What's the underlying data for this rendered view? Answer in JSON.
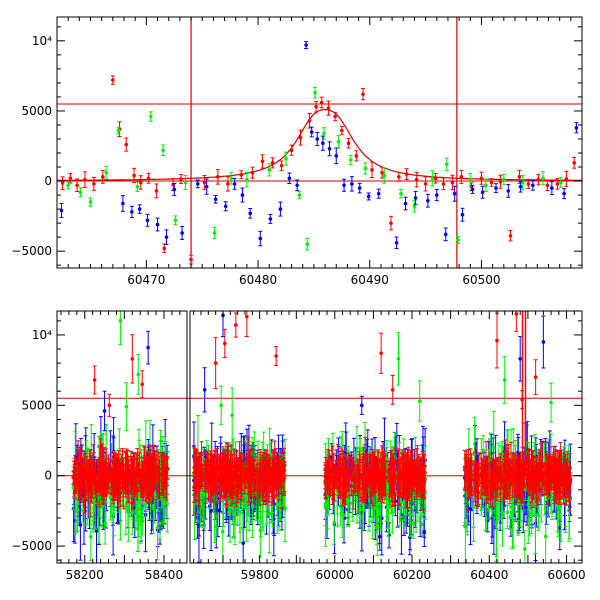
{
  "colors": {
    "red": "#ff0000",
    "green": "#00ee00",
    "blue": "#0000ff",
    "model": "#cc0000",
    "ref": "#cc0000",
    "axis": "#000000"
  },
  "chart_data": [
    {
      "type": "scatter",
      "panel": "top",
      "xlim": [
        60462,
        60509
      ],
      "ylim": [
        -6200,
        11700
      ],
      "xticks": [
        60470,
        60480,
        60490,
        60500
      ],
      "yticks": [
        -5000,
        0,
        5000,
        10000
      ],
      "ytick_labels": [
        "−5000",
        "0",
        "5000",
        "10⁴"
      ],
      "reference_lines_y": [
        0,
        5500
      ],
      "reference_lines_x": [
        60474,
        60497.8
      ],
      "model_curve": {
        "t0": 60486,
        "peak": 5100,
        "tE": 2.3
      },
      "series": [
        {
          "color": "red",
          "points": [
            [
              60462.5,
              -150
            ],
            [
              60463.2,
              200
            ],
            [
              60463.8,
              -300
            ],
            [
              60464.5,
              100
            ],
            [
              60465.3,
              -200
            ],
            [
              60466.1,
              300
            ],
            [
              60467,
              7200
            ],
            [
              60467.6,
              3700
            ],
            [
              60468.2,
              2600
            ],
            [
              60468.9,
              400
            ],
            [
              60469.5,
              -100
            ],
            [
              60470.2,
              200
            ],
            [
              60470.9,
              -700
            ],
            [
              60471.6,
              -4800
            ],
            [
              60472.4,
              -250
            ],
            [
              60473.1,
              150
            ],
            [
              60474,
              -5600
            ],
            [
              60475.2,
              -100
            ],
            [
              60476.4,
              300
            ],
            [
              60477.3,
              -200
            ],
            [
              60478.5,
              450
            ],
            [
              60479.5,
              600
            ],
            [
              60480.4,
              1400
            ],
            [
              60481.3,
              1300
            ],
            [
              60482.1,
              1100
            ],
            [
              60483,
              2200
            ],
            [
              60483.8,
              3100
            ],
            [
              60484.6,
              4300
            ],
            [
              60485.2,
              5300
            ],
            [
              60485.7,
              5600
            ],
            [
              60486.3,
              5200
            ],
            [
              60486.9,
              4600
            ],
            [
              60487.5,
              3600
            ],
            [
              60488.1,
              2700
            ],
            [
              60488.8,
              1800
            ],
            [
              60489.4,
              6200
            ],
            [
              60490.2,
              800
            ],
            [
              60491.1,
              600
            ],
            [
              60491.9,
              -3000
            ],
            [
              60492.6,
              300
            ],
            [
              60493.3,
              500
            ],
            [
              60494.2,
              100
            ],
            [
              60495,
              -200
            ],
            [
              60495.9,
              200
            ],
            [
              60496.6,
              -200
            ],
            [
              60497.4,
              -100
            ],
            [
              60498.2,
              300
            ],
            [
              60499.1,
              -400
            ],
            [
              60500,
              200
            ],
            [
              60500.9,
              -100
            ],
            [
              60501.7,
              -50
            ],
            [
              60502.6,
              -3900
            ],
            [
              60503.4,
              300
            ],
            [
              60504.2,
              -200
            ],
            [
              60505.1,
              100
            ],
            [
              60505.9,
              -300
            ],
            [
              60506.8,
              -200
            ],
            [
              60507.6,
              150
            ],
            [
              60508.3,
              1300
            ]
          ]
        },
        {
          "color": "green",
          "points": [
            [
              60463,
              -300
            ],
            [
              60464.1,
              -800
            ],
            [
              60465,
              -1500
            ],
            [
              60466.4,
              600
            ],
            [
              60467.5,
              3600
            ],
            [
              60469.2,
              -400
            ],
            [
              60470.4,
              4600
            ],
            [
              60471.5,
              2200
            ],
            [
              60472.6,
              -2800
            ],
            [
              60473.5,
              -100
            ],
            [
              60476.1,
              -3700
            ],
            [
              60477.6,
              200
            ],
            [
              60479,
              100
            ],
            [
              60481,
              800
            ],
            [
              60482.5,
              1600
            ],
            [
              60483.7,
              -1000
            ],
            [
              60484.4,
              -4500
            ],
            [
              60485.1,
              6300
            ],
            [
              60485.9,
              3400
            ],
            [
              60487.2,
              2800
            ],
            [
              60488.3,
              1500
            ],
            [
              60489.6,
              900
            ],
            [
              60491.3,
              400
            ],
            [
              60492.8,
              -900
            ],
            [
              60494,
              -1800
            ],
            [
              60495.6,
              200
            ],
            [
              60496.9,
              1200
            ],
            [
              60497.9,
              -4200
            ],
            [
              60499,
              100
            ],
            [
              60500.4,
              -300
            ],
            [
              60502,
              100
            ],
            [
              60503.7,
              -100
            ],
            [
              60505.5,
              200
            ],
            [
              60507.1,
              -100
            ]
          ]
        },
        {
          "color": "blue",
          "points": [
            [
              60462.4,
              -2100
            ],
            [
              60467.9,
              -1600
            ],
            [
              60468.7,
              -2200
            ],
            [
              60469.4,
              -2000
            ],
            [
              60470.1,
              -2800
            ],
            [
              60471,
              -3100
            ],
            [
              60471.8,
              -4000
            ],
            [
              60472.5,
              -600
            ],
            [
              60473.2,
              -3700
            ],
            [
              60474.6,
              -200
            ],
            [
              60475.4,
              -400
            ],
            [
              60476.2,
              -1300
            ],
            [
              60477.1,
              -1800
            ],
            [
              60477.9,
              -200
            ],
            [
              60478.6,
              -1000
            ],
            [
              60479.3,
              -2300
            ],
            [
              60480.2,
              -4100
            ],
            [
              60481.1,
              -2700
            ],
            [
              60482,
              -2000
            ],
            [
              60482.8,
              200
            ],
            [
              60483.5,
              -300
            ],
            [
              60484.3,
              9700
            ],
            [
              60484.8,
              3500
            ],
            [
              60485.3,
              3000
            ],
            [
              60485.8,
              2700
            ],
            [
              60486.4,
              2300
            ],
            [
              60487,
              1800
            ],
            [
              60487.7,
              -300
            ],
            [
              60488.4,
              -200
            ],
            [
              60489.1,
              -500
            ],
            [
              60489.9,
              -1100
            ],
            [
              60490.8,
              -900
            ],
            [
              60492.4,
              -4400
            ],
            [
              60493.2,
              -1600
            ],
            [
              60494.1,
              -1200
            ],
            [
              60495.2,
              -1400
            ],
            [
              60496,
              -1000
            ],
            [
              60496.8,
              -3800
            ],
            [
              60497.6,
              -900
            ],
            [
              60498.3,
              -2400
            ],
            [
              60499.2,
              -600
            ],
            [
              60500.1,
              -800
            ],
            [
              60501.3,
              -500
            ],
            [
              60502.4,
              -700
            ],
            [
              60503.5,
              -400
            ],
            [
              60504.6,
              -300
            ],
            [
              60506.3,
              -500
            ],
            [
              60507.4,
              -900
            ],
            [
              60508.5,
              3800
            ]
          ]
        }
      ]
    },
    {
      "type": "scatter",
      "panel": "bottom",
      "ylim": [
        -6200,
        11700
      ],
      "yticks": [
        -5000,
        0,
        5000,
        10000
      ],
      "ytick_labels": [
        "−5000",
        "0",
        "5000",
        "10⁴"
      ],
      "reference_lines_y": [
        0,
        5500
      ],
      "segments": [
        {
          "xlim": [
            58130,
            58458
          ],
          "xticks": [
            58200,
            58300,
            58400
          ],
          "xtick_labels": [
            "58200",
            "58400"
          ],
          "label_ticks": [
            58200,
            58400
          ]
        },
        {
          "xlim": [
            59610,
            59910
          ],
          "xticks": [
            59700,
            59800
          ],
          "label_ticks": [
            59800
          ]
        },
        {
          "xlim": [
            59910,
            60640
          ],
          "xticks": [
            60000,
            60100,
            60200,
            60300,
            60400,
            60500,
            60600
          ],
          "label_ticks": [
            60000,
            60200,
            60400,
            60600
          ]
        }
      ],
      "xtick_labels": [
        "58200",
        "58400",
        "59800",
        "60000",
        "60200",
        "60400",
        "60600"
      ],
      "seasons": [
        {
          "segment": 0,
          "x_range": [
            58170,
            58410
          ]
        },
        {
          "segment": 1,
          "x_range": [
            59620,
            59870
          ]
        },
        {
          "segment": 2,
          "x_range": [
            59975,
            60235
          ]
        },
        {
          "segment": 2,
          "x_range": [
            60335,
            60610
          ]
        }
      ],
      "event_x": 60486,
      "outliers": [
        {
          "color": "red",
          "points": [
            [
              58225,
              6800
            ],
            [
              58262,
              5000
            ],
            [
              58320,
              8300
            ],
            [
              58345,
              6500
            ],
            [
              59680,
              8000
            ],
            [
              59705,
              9400
            ],
            [
              59735,
              10700
            ],
            [
              59765,
              11300
            ],
            [
              59845,
              8500
            ],
            [
              60120,
              8700
            ],
            [
              60150,
              6100
            ],
            [
              60420,
              9600
            ],
            [
              60470,
              11500
            ],
            [
              60485,
              5400
            ],
            [
              60520,
              7000
            ]
          ]
        },
        {
          "color": "green",
          "points": [
            [
              58290,
              11000
            ],
            [
              58305,
              4900
            ],
            [
              58335,
              7200
            ],
            [
              59695,
              5000
            ],
            [
              59725,
              4300
            ],
            [
              60165,
              8300
            ],
            [
              60220,
              5300
            ],
            [
              60440,
              6800
            ],
            [
              60560,
              5200
            ]
          ]
        },
        {
          "color": "blue",
          "points": [
            [
              58360,
              9100
            ],
            [
              58250,
              4600
            ],
            [
              59650,
              6100
            ],
            [
              59700,
              11400
            ],
            [
              60070,
              5000
            ],
            [
              60480,
              8300
            ],
            [
              60540,
              9500
            ]
          ]
        }
      ]
    }
  ]
}
